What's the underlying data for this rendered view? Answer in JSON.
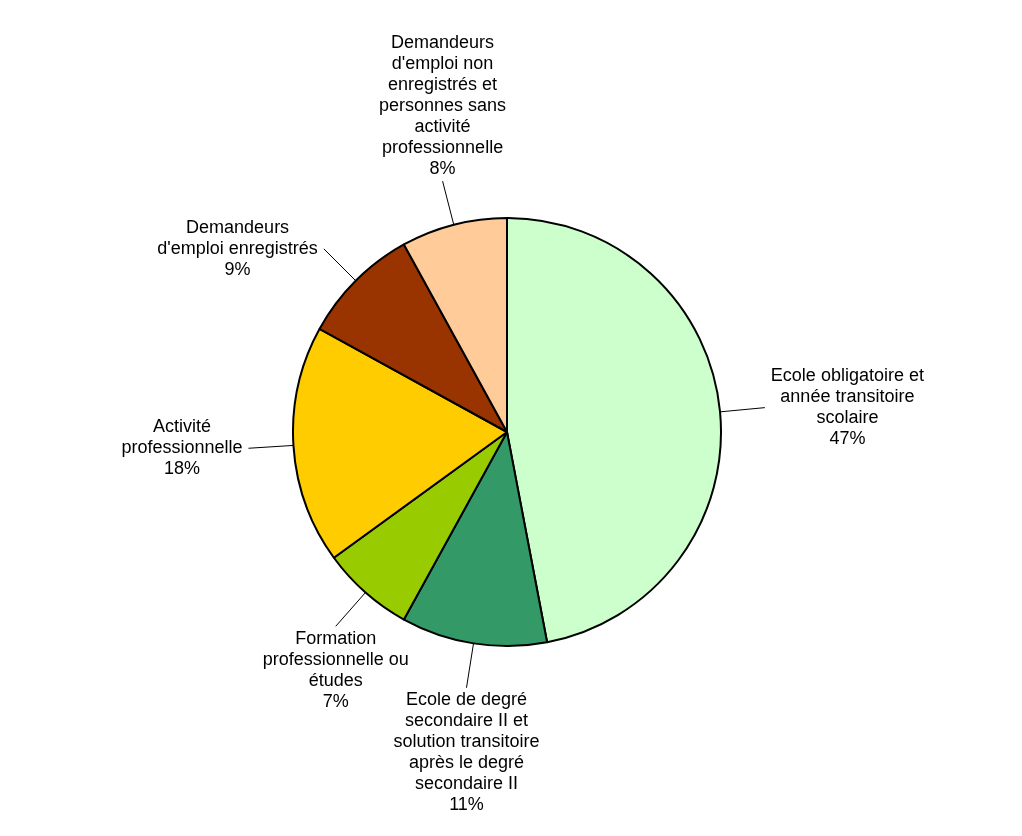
{
  "chart_data": {
    "type": "pie",
    "categories": [
      "Ecole obligatoire et année transitoire scolaire",
      "Ecole de degré secondaire II et solution transitoire après le degré secondaire II",
      "Formation professionnelle ou études",
      "Activité professionnelle",
      "Demandeurs d'emploi enregistrés",
      "Demandeurs d'emploi non enregistrés et personnes sans activité professionnelle"
    ],
    "values": [
      47,
      11,
      7,
      18,
      9,
      8
    ],
    "value_labels": [
      "47%",
      "11%",
      "7%",
      "18%",
      "9%",
      "8%"
    ],
    "colors": [
      "#ccffcc",
      "#339966",
      "#99cc00",
      "#ffcc00",
      "#993300",
      "#ffcc99"
    ],
    "legend": false
  }
}
